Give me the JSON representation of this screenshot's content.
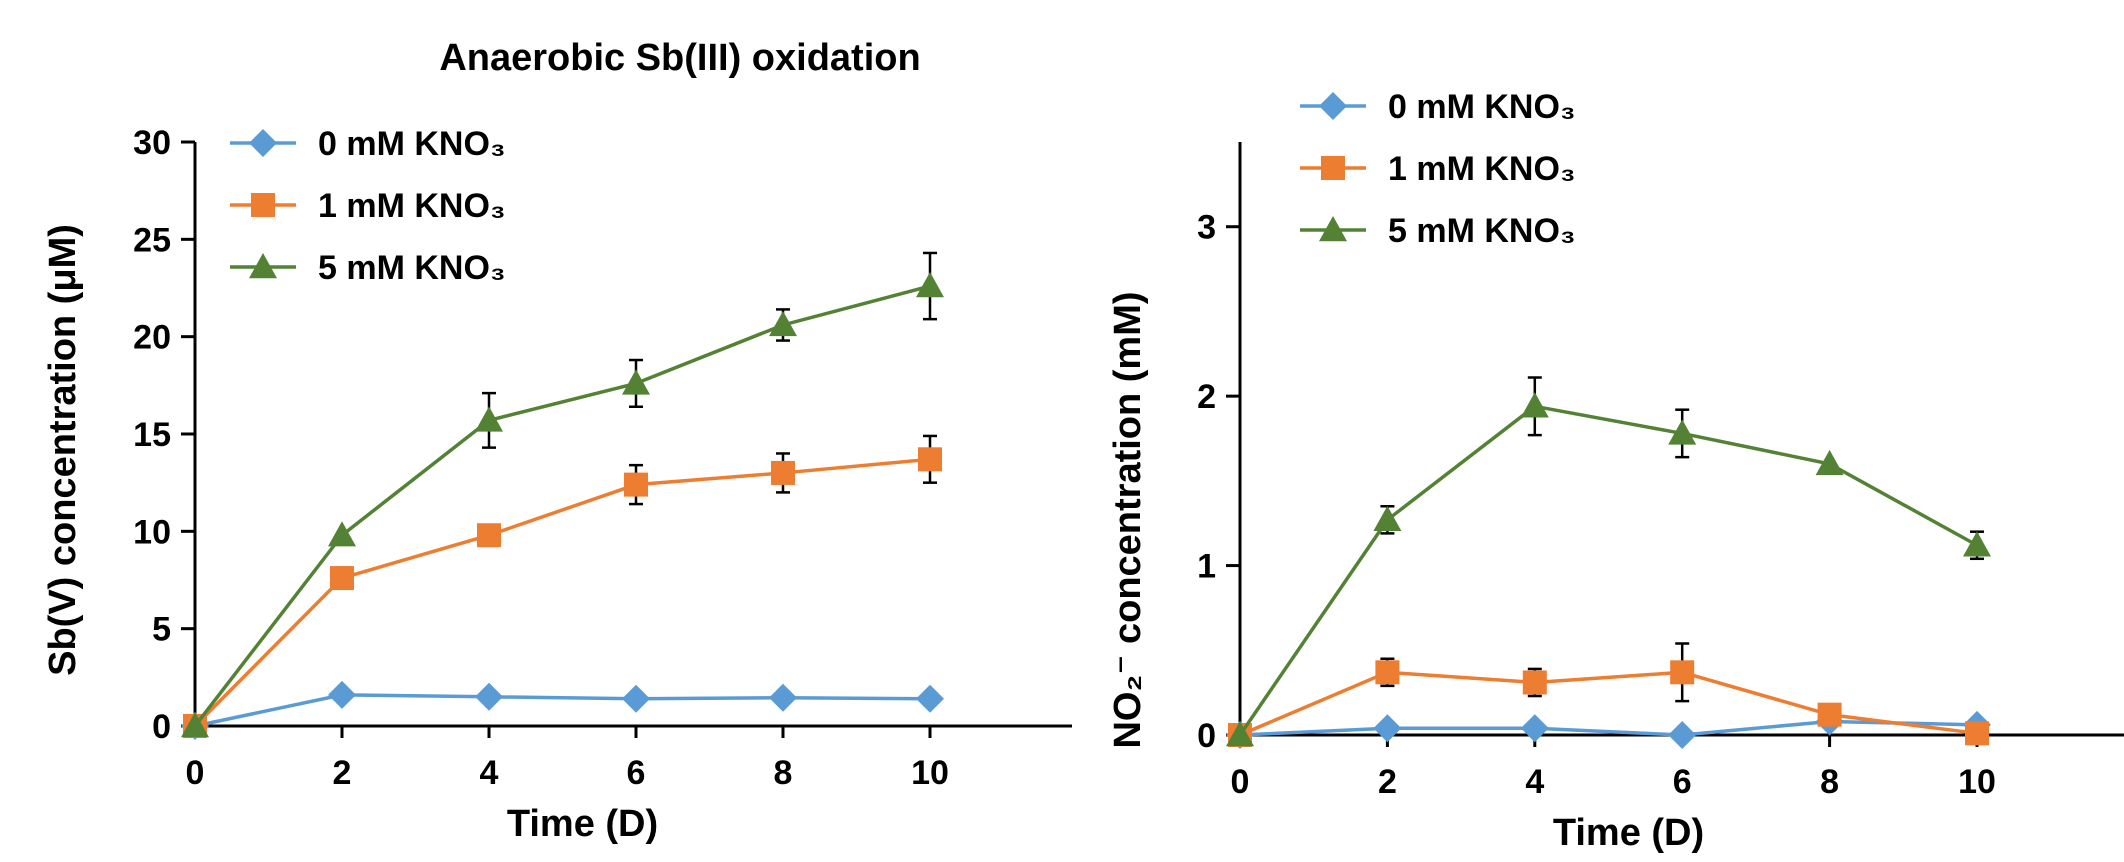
{
  "figure_title": "Anaerobic Sb(III) oxidation",
  "chart_data": [
    {
      "type": "line",
      "title": "Anaerobic Sb(III) oxidation",
      "xlabel": "Time (D)",
      "ylabel": "Sb(V) concentration (μM)",
      "x": [
        0,
        2,
        4,
        6,
        8,
        10
      ],
      "xlim": [
        0,
        12
      ],
      "ylim": [
        0,
        30
      ],
      "xticks": [
        0,
        2,
        4,
        6,
        8,
        10
      ],
      "yticks": [
        0,
        5,
        10,
        15,
        20,
        25,
        30
      ],
      "legend_position": "top-left",
      "series": [
        {
          "name": "0 mM KNO₃",
          "color": "#5B9BD5",
          "marker": "diamond",
          "values": [
            0,
            1.6,
            1.5,
            1.4,
            1.45,
            1.4
          ],
          "errors": [
            0,
            0,
            0,
            0,
            0,
            0.3
          ]
        },
        {
          "name": "1 mM KNO₃",
          "color": "#ED7D31",
          "marker": "square",
          "values": [
            0,
            7.6,
            9.8,
            12.4,
            13.0,
            13.7
          ],
          "errors": [
            0,
            0,
            0,
            1.0,
            1.0,
            1.2
          ]
        },
        {
          "name": "5 mM KNO₃",
          "color": "#548235",
          "marker": "triangle",
          "values": [
            0,
            9.8,
            15.7,
            17.6,
            20.6,
            22.6
          ],
          "errors": [
            0,
            0,
            1.4,
            1.2,
            0.8,
            1.7
          ]
        }
      ]
    },
    {
      "type": "line",
      "title": "",
      "xlabel": "Time (D)",
      "ylabel": "NO₂⁻ concentration (mM)",
      "x": [
        0,
        2,
        4,
        6,
        8,
        10
      ],
      "xlim": [
        0,
        12
      ],
      "ylim": [
        0,
        3.5
      ],
      "xticks": [
        0,
        2,
        4,
        6,
        8,
        10
      ],
      "yticks": [
        0,
        1,
        2,
        3
      ],
      "legend_position": "top-left",
      "series": [
        {
          "name": "0 mM KNO₃",
          "color": "#5B9BD5",
          "marker": "diamond",
          "values": [
            0,
            0.04,
            0.04,
            0,
            0.08,
            0.06
          ],
          "errors": [
            0,
            0,
            0,
            0,
            0,
            0
          ]
        },
        {
          "name": "1 mM KNO₃",
          "color": "#ED7D31",
          "marker": "square",
          "values": [
            0,
            0.37,
            0.31,
            0.37,
            0.12,
            0.01
          ],
          "errors": [
            0,
            0.08,
            0.08,
            0.17,
            0,
            0
          ]
        },
        {
          "name": "5 mM KNO₃",
          "color": "#548235",
          "marker": "triangle",
          "values": [
            0,
            1.27,
            1.94,
            1.78,
            1.6,
            1.12
          ],
          "errors": [
            0,
            0.08,
            0.17,
            0.14,
            0,
            0.08
          ]
        }
      ]
    }
  ]
}
